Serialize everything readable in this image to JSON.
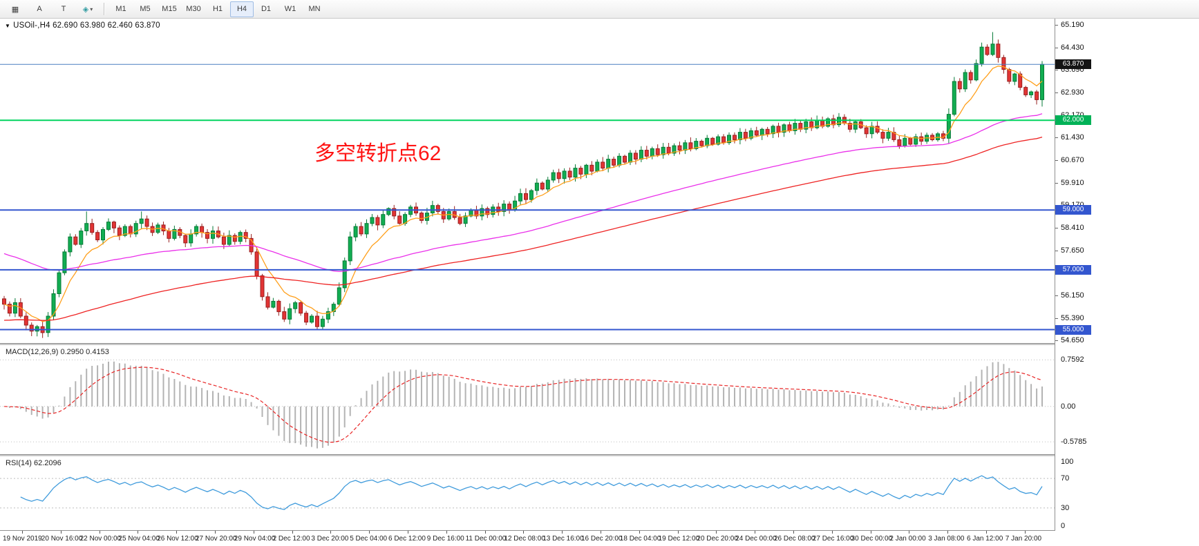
{
  "window": {
    "title": "USOil-,H4"
  },
  "toolbar": {
    "tools": [
      {
        "id": "tile-windows",
        "glyph": "▦"
      },
      {
        "id": "text",
        "glyph": "A"
      },
      {
        "id": "text-label",
        "glyph": "T"
      },
      {
        "id": "shapes",
        "glyph": "◈",
        "caret": "▾"
      }
    ],
    "timeframes": [
      "M1",
      "M5",
      "M15",
      "M30",
      "H1",
      "H4",
      "D1",
      "W1",
      "MN"
    ],
    "active_timeframe": "H4"
  },
  "chart": {
    "symbol_info": "USOil-,H4  62.690 63.980 62.460 63.870",
    "collapse_glyph": "▼",
    "annotation": {
      "text": "多空转折点62",
      "color": "#ff1414"
    },
    "price_axis": {
      "max": 65.4,
      "min": 54.55,
      "ticks": [
        "65.190",
        "64.430",
        "63.690",
        "62.930",
        "62.170",
        "61.430",
        "60.670",
        "59.910",
        "59.170",
        "58.410",
        "57.650",
        "56.900",
        "56.150",
        "55.390",
        "54.650"
      ]
    },
    "price_tags": [
      {
        "text": "63.870",
        "price": 63.87,
        "bg": "#141414"
      },
      {
        "text": "62.000",
        "price": 62.0,
        "bg": "#00b257"
      },
      {
        "text": "59.000",
        "price": 59.0,
        "bg": "#3356cf"
      },
      {
        "text": "57.000",
        "price": 57.0,
        "bg": "#3356cf"
      },
      {
        "text": "55.000",
        "price": 55.0,
        "bg": "#3356cf"
      }
    ],
    "hlines": [
      {
        "price": 63.87,
        "color": "#4a7ec0",
        "width": 1
      },
      {
        "price": 62.0,
        "color": "#00d35e",
        "width": 2
      },
      {
        "price": 59.0,
        "color": "#3356cf",
        "width": 2
      },
      {
        "price": 57.0,
        "color": "#3356cf",
        "width": 2
      },
      {
        "price": 55.0,
        "color": "#3356cf",
        "width": 2
      }
    ],
    "colors": {
      "up": "#12ad52",
      "up_border": "#067a36",
      "down": "#e23434",
      "down_border": "#981f1f",
      "ma_fast": "#ff9f1a",
      "ma_mid": "#ea2fea",
      "ma_slow": "#ee2222",
      "macd_hist": "#b3b3b3",
      "macd_signal": "#e82424",
      "rsi_line": "#3f9bdc",
      "level_dotted": "#bdbdbd"
    }
  },
  "macd": {
    "label": "MACD(12,26,9) 0.2950 0.4153",
    "value": 0.295,
    "signal_value": 0.4153,
    "range": {
      "vmax": 1.0,
      "vmin": -0.78
    },
    "levels": [
      {
        "text": "0.7592",
        "value": 0.7592
      },
      {
        "text": "0.00",
        "value": 0.0
      },
      {
        "text": "-0.5785",
        "value": -0.5785
      }
    ]
  },
  "rsi": {
    "label": "RSI(14) 62.2096",
    "value": 62.2096,
    "levels": [
      70,
      30
    ],
    "axis": [
      {
        "text": "100",
        "value": 100
      },
      {
        "text": "70",
        "value": 70
      },
      {
        "text": "30",
        "value": 30
      },
      {
        "text": "0",
        "value": 0
      }
    ]
  },
  "chart_data": {
    "type": "candlestick",
    "symbol": "USOil-",
    "timeframe": "H4",
    "title": "USOil-,H4",
    "ohlc_display": {
      "open": "62.690",
      "high": "63.980",
      "low": "62.460",
      "close": "63.870"
    },
    "y_range": [
      54.55,
      65.4
    ],
    "x_labels": [
      "19 Nov 2019",
      "20 Nov 16:00",
      "22 Nov 00:00",
      "25 Nov 04:00",
      "26 Nov 12:00",
      "27 Nov 20:00",
      "29 Nov 04:00",
      "2 Dec 12:00",
      "3 Dec 20:00",
      "5 Dec 04:00",
      "6 Dec 12:00",
      "9 Dec 16:00",
      "11 Dec 00:00",
      "12 Dec 08:00",
      "13 Dec 16:00",
      "16 Dec 20:00",
      "18 Dec 04:00",
      "19 Dec 12:00",
      "20 Dec 20:00",
      "24 Dec 00:00",
      "26 Dec 08:00",
      "27 Dec 16:00",
      "30 Dec 00:00",
      "2 Jan 00:00",
      "3 Jan 08:00",
      "6 Jan 12:00",
      "7 Jan 20:00"
    ],
    "closes": [
      55.85,
      55.55,
      55.9,
      55.45,
      55.15,
      54.95,
      55.1,
      54.9,
      55.45,
      56.2,
      56.9,
      57.6,
      58.1,
      57.85,
      58.3,
      58.55,
      58.25,
      58.0,
      58.35,
      58.6,
      58.4,
      58.15,
      58.45,
      58.2,
      58.55,
      58.7,
      58.45,
      58.25,
      58.5,
      58.3,
      58.05,
      58.35,
      58.15,
      57.9,
      58.2,
      58.45,
      58.25,
      58.05,
      58.3,
      58.1,
      57.85,
      58.15,
      57.95,
      58.25,
      58.05,
      57.6,
      56.8,
      56.1,
      55.75,
      55.95,
      55.6,
      55.35,
      55.7,
      55.9,
      55.55,
      55.25,
      55.45,
      55.1,
      55.35,
      55.6,
      55.85,
      56.4,
      57.3,
      58.1,
      58.45,
      58.2,
      58.55,
      58.75,
      58.5,
      58.85,
      59.05,
      58.8,
      58.55,
      58.85,
      59.1,
      58.9,
      58.65,
      58.9,
      59.15,
      58.95,
      58.7,
      58.95,
      58.75,
      58.55,
      58.8,
      59.0,
      58.8,
      59.05,
      58.85,
      59.1,
      58.95,
      59.2,
      59.0,
      59.3,
      59.55,
      59.35,
      59.65,
      59.9,
      59.7,
      60.0,
      60.25,
      60.05,
      60.3,
      60.1,
      60.4,
      60.2,
      60.5,
      60.3,
      60.6,
      60.4,
      60.7,
      60.5,
      60.8,
      60.6,
      60.9,
      60.7,
      61.0,
      60.8,
      61.05,
      60.85,
      61.1,
      60.9,
      61.15,
      61.0,
      61.25,
      61.05,
      61.3,
      61.15,
      61.4,
      61.2,
      61.45,
      61.25,
      61.5,
      61.35,
      61.6,
      61.4,
      61.65,
      61.5,
      61.7,
      61.55,
      61.8,
      61.6,
      61.85,
      61.65,
      61.9,
      61.7,
      61.95,
      61.75,
      62.0,
      61.8,
      62.05,
      61.85,
      62.1,
      61.9,
      61.7,
      61.95,
      61.75,
      61.55,
      61.8,
      61.6,
      61.4,
      61.6,
      61.35,
      61.15,
      61.4,
      61.2,
      61.45,
      61.3,
      61.5,
      61.35,
      61.55,
      61.4,
      62.2,
      63.3,
      63.05,
      63.6,
      63.35,
      63.9,
      64.45,
      64.2,
      64.55,
      64.1,
      63.7,
      63.3,
      63.55,
      63.1,
      62.85,
      62.95,
      62.69,
      63.87
    ],
    "wick_overrides": {
      "5": {
        "low": 54.78
      },
      "7": {
        "low": 54.72
      },
      "15": {
        "high": 58.95
      },
      "25": {
        "high": 58.95
      },
      "57": {
        "low": 55.02
      },
      "172": {
        "high": 62.4
      },
      "173": {
        "high": 63.45
      },
      "178": {
        "high": 64.6
      },
      "180": {
        "high": 64.95
      },
      "181": {
        "high": 64.7
      },
      "189": {
        "high": 63.98,
        "low": 62.46
      }
    },
    "ma_periods": {
      "fast": 8,
      "mid": 60,
      "slow": 100
    },
    "ma_seeds": {
      "fast": null,
      "mid": 57.6,
      "slow": 55.3
    },
    "indicators": {
      "macd": {
        "fast": 12,
        "slow": 26,
        "signal": 9,
        "current_main": 0.295,
        "current_signal": 0.4153
      },
      "rsi": {
        "period": 14,
        "current": 62.2096
      }
    }
  }
}
